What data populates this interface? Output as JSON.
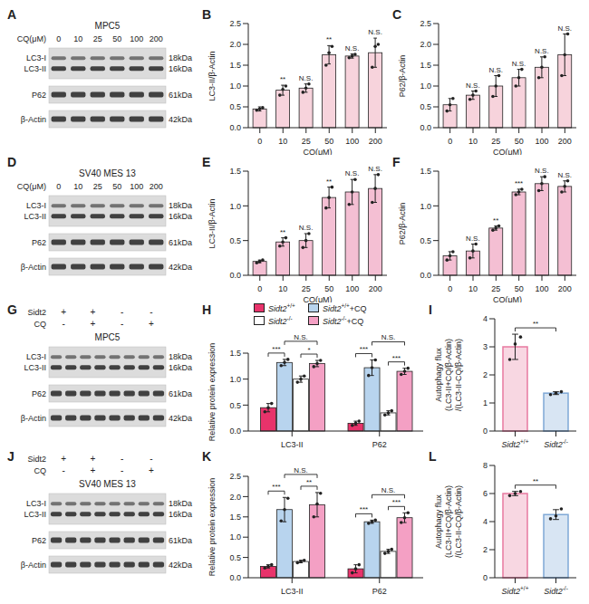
{
  "chart_data": [
    {
      "panel": "B",
      "type": "bar",
      "x_label": "CQ(μM)",
      "y_label": "LC3-II/β-Actin",
      "categories": [
        "0",
        "10",
        "25",
        "50",
        "100",
        "200"
      ],
      "values": [
        0.45,
        0.9,
        0.95,
        1.75,
        1.72,
        1.8
      ],
      "errors": [
        0.05,
        0.12,
        0.1,
        0.22,
        0.05,
        0.35
      ],
      "points": [
        [
          0.42,
          0.45,
          0.48
        ],
        [
          0.78,
          0.92,
          1.0
        ],
        [
          0.85,
          0.95,
          1.05
        ],
        [
          1.5,
          1.8,
          1.95
        ],
        [
          1.68,
          1.72,
          1.76
        ],
        [
          1.45,
          1.95,
          2.0
        ]
      ],
      "annotations": [
        null,
        "**",
        "N.S.",
        "**",
        "N.S.",
        "N.S."
      ],
      "color": "#f7d3dc",
      "ylim": [
        0,
        2.5
      ],
      "yticks": [
        {
          "value": 0,
          "label": "0.0"
        },
        {
          "value": 0.5,
          "label": "0.5"
        },
        {
          "value": 1,
          "label": "1.0"
        },
        {
          "value": 1.5,
          "label": "1.5"
        },
        {
          "value": 2,
          "label": "2.0"
        },
        {
          "value": 2.5,
          "label": "2.5"
        }
      ]
    },
    {
      "panel": "C",
      "type": "bar",
      "x_label": "CQ(μM)",
      "y_label": "P62/β-Actin",
      "categories": [
        "0",
        "10",
        "25",
        "50",
        "100",
        "200"
      ],
      "values": [
        0.55,
        0.78,
        1.0,
        1.2,
        1.45,
        1.75
      ],
      "errors": [
        0.15,
        0.1,
        0.25,
        0.2,
        0.25,
        0.5
      ],
      "points": [
        [
          0.4,
          0.55,
          0.7
        ],
        [
          0.68,
          0.78,
          0.88
        ],
        [
          0.75,
          1.0,
          1.25
        ],
        [
          1.0,
          1.2,
          1.4
        ],
        [
          1.2,
          1.45,
          1.7
        ],
        [
          1.25,
          1.75,
          2.25
        ]
      ],
      "annotations": [
        null,
        "N.S.",
        "N.S.",
        "N.S.",
        "N.S.",
        "N.S."
      ],
      "color": "#f7d3dc",
      "ylim": [
        0,
        2.5
      ],
      "yticks": [
        {
          "value": 0,
          "label": "0.0"
        },
        {
          "value": 0.5,
          "label": "0.5"
        },
        {
          "value": 1,
          "label": "1.0"
        },
        {
          "value": 1.5,
          "label": "1.5"
        },
        {
          "value": 2,
          "label": "2.0"
        },
        {
          "value": 2.5,
          "label": "2.5"
        }
      ]
    },
    {
      "panel": "E",
      "type": "bar",
      "x_label": "CQ(μM)",
      "y_label": "LC3-II/β-Actin",
      "categories": [
        "0",
        "10",
        "25",
        "50",
        "100",
        "200"
      ],
      "values": [
        0.2,
        0.48,
        0.5,
        1.12,
        1.2,
        1.25
      ],
      "errors": [
        0.02,
        0.06,
        0.1,
        0.15,
        0.18,
        0.2
      ],
      "points": [
        [
          0.18,
          0.2,
          0.22
        ],
        [
          0.42,
          0.48,
          0.54
        ],
        [
          0.4,
          0.5,
          0.6
        ],
        [
          0.97,
          1.12,
          1.27
        ],
        [
          1.02,
          1.2,
          1.38
        ],
        [
          1.05,
          1.25,
          1.45
        ]
      ],
      "annotations": [
        null,
        "**",
        "N.S.",
        "**",
        "N.S.",
        "N.S."
      ],
      "color": "#f4bfd3",
      "ylim": [
        0,
        1.5
      ],
      "yticks": [
        {
          "value": 0,
          "label": "0.0"
        },
        {
          "value": 0.5,
          "label": "0.5"
        },
        {
          "value": 1,
          "label": "1.0"
        },
        {
          "value": 1.5,
          "label": "1.5"
        }
      ]
    },
    {
      "panel": "F",
      "type": "bar",
      "x_label": "CQ(μM)",
      "y_label": "P62/β-Actin",
      "categories": [
        "0",
        "10",
        "25",
        "50",
        "100",
        "200"
      ],
      "values": [
        0.28,
        0.35,
        0.68,
        1.2,
        1.32,
        1.28
      ],
      "errors": [
        0.06,
        0.1,
        0.03,
        0.04,
        0.1,
        0.08
      ],
      "points": [
        [
          0.22,
          0.28,
          0.34
        ],
        [
          0.25,
          0.35,
          0.45
        ],
        [
          0.65,
          0.68,
          0.71
        ],
        [
          1.16,
          1.2,
          1.24
        ],
        [
          1.22,
          1.32,
          1.42
        ],
        [
          1.2,
          1.28,
          1.36
        ]
      ],
      "annotations": [
        null,
        "N.S.",
        "**",
        "***",
        "N.S.",
        "N.S."
      ],
      "color": "#f4bfd3",
      "ylim": [
        0,
        1.5
      ],
      "yticks": [
        {
          "value": 0,
          "label": "0.0"
        },
        {
          "value": 0.5,
          "label": "0.5"
        },
        {
          "value": 1,
          "label": "1.0"
        },
        {
          "value": 1.5,
          "label": "1.5"
        }
      ]
    },
    {
      "panel": "H",
      "type": "bar",
      "y_label": "Relative protein expression",
      "categories": [
        "LC3-II",
        "P62"
      ],
      "legend": "top",
      "series": [
        {
          "name": "Sidt2+/+",
          "color": "#e8336b",
          "values": [
            0.45,
            0.15
          ],
          "errors": [
            0.08,
            0.04
          ],
          "points": [
            [
              0.37,
              0.45,
              0.53
            ],
            [
              0.11,
              0.15,
              0.19
            ]
          ]
        },
        {
          "name": "Sidt2+/++CQ",
          "color": "#b8d4ee",
          "values": [
            1.32,
            1.22
          ],
          "errors": [
            0.06,
            0.15
          ],
          "points": [
            [
              1.26,
              1.32,
              1.38
            ],
            [
              1.07,
              1.22,
              1.37
            ]
          ]
        },
        {
          "name": "Sidt2-/-",
          "color": "#ffffff",
          "values": [
            1.0,
            0.35
          ],
          "errors": [
            0.06,
            0.04
          ],
          "points": [
            [
              0.94,
              1.0,
              1.06
            ],
            [
              0.31,
              0.35,
              0.39
            ]
          ]
        },
        {
          "name": "Sidt2-/-+CQ",
          "color": "#f4a0c4",
          "values": [
            1.3,
            1.15
          ],
          "errors": [
            0.06,
            0.06
          ],
          "points": [
            [
              1.24,
              1.3,
              1.36
            ],
            [
              1.09,
              1.15,
              1.21
            ]
          ]
        }
      ],
      "brackets": [
        {
          "category": "LC3-II",
          "between": [
            "Sidt2+/+",
            "Sidt2+/++CQ"
          ],
          "label": "***"
        },
        {
          "category": "LC3-II",
          "between": [
            "Sidt2+/++CQ",
            "Sidt2-/-+CQ"
          ],
          "label": "N.S."
        },
        {
          "category": "LC3-II",
          "between": [
            "Sidt2-/-",
            "Sidt2-/-+CQ"
          ],
          "label": "*"
        },
        {
          "category": "P62",
          "between": [
            "Sidt2+/+",
            "Sidt2+/++CQ"
          ],
          "label": "***"
        },
        {
          "category": "P62",
          "between": [
            "Sidt2+/++CQ",
            "Sidt2-/-+CQ"
          ],
          "label": "N.S."
        },
        {
          "category": "P62",
          "between": [
            "Sidt2-/-",
            "Sidt2-/-+CQ"
          ],
          "label": "***"
        }
      ],
      "ylim": [
        0,
        1.5
      ],
      "yticks": [
        {
          "value": 0,
          "label": "0.0"
        },
        {
          "value": 0.5,
          "label": "0.5"
        },
        {
          "value": 1,
          "label": "1.0"
        },
        {
          "value": 1.5,
          "label": "1.5"
        }
      ]
    },
    {
      "panel": "I",
      "type": "bar",
      "y_label": [
        "Autophagy flux",
        "(LC3-II+CQ/β-Actin)",
        "/(LC3-II-CQ/β-Actin)"
      ],
      "categories": [
        "Sidt2+/+",
        "Sidt2-/-"
      ],
      "values": [
        3.0,
        1.35
      ],
      "errors": [
        0.45,
        0.05
      ],
      "points": [
        [
          2.55,
          3.1,
          3.35
        ],
        [
          1.3,
          1.35,
          1.4
        ]
      ],
      "colors": [
        "#e77aa0",
        "#7fa8d6"
      ],
      "brackets": [
        {
          "between": [
            "Sidt2+/+",
            "Sidt2-/-"
          ],
          "label": "**"
        }
      ],
      "ylim": [
        0,
        4
      ],
      "yticks": [
        0,
        1,
        2,
        3,
        4
      ]
    },
    {
      "panel": "K",
      "type": "bar",
      "y_label": "Relative protein expression",
      "categories": [
        "LC3-II",
        "P62"
      ],
      "series": [
        {
          "name": "Sidt2+/+",
          "color": "#e8336b",
          "values": [
            0.28,
            0.22
          ],
          "errors": [
            0.04,
            0.1
          ],
          "points": [
            [
              0.24,
              0.28,
              0.32
            ],
            [
              0.12,
              0.22,
              0.32
            ]
          ]
        },
        {
          "name": "Sidt2+/++CQ",
          "color": "#b8d4ee",
          "values": [
            1.68,
            1.38
          ],
          "errors": [
            0.3,
            0.04
          ],
          "points": [
            [
              1.4,
              1.68,
              1.96
            ],
            [
              1.34,
              1.38,
              1.42
            ]
          ]
        },
        {
          "name": "Sidt2-/-",
          "color": "#ffffff",
          "values": [
            0.4,
            0.65
          ],
          "errors": [
            0.03,
            0.05
          ],
          "points": [
            [
              0.37,
              0.4,
              0.43
            ],
            [
              0.6,
              0.65,
              0.7
            ]
          ]
        },
        {
          "name": "Sidt2-/-+CQ",
          "color": "#f4a0c4",
          "values": [
            1.8,
            1.48
          ],
          "errors": [
            0.3,
            0.12
          ],
          "points": [
            [
              1.5,
              1.82,
              2.08
            ],
            [
              1.36,
              1.48,
              1.6
            ]
          ]
        }
      ],
      "brackets": [
        {
          "category": "LC3-II",
          "between": [
            "Sidt2+/+",
            "Sidt2+/++CQ"
          ],
          "label": "***"
        },
        {
          "category": "LC3-II",
          "between": [
            "Sidt2+/++CQ",
            "Sidt2-/-+CQ"
          ],
          "label": "N.S."
        },
        {
          "category": "LC3-II",
          "between": [
            "Sidt2-/-",
            "Sidt2-/-+CQ"
          ],
          "label": "**"
        },
        {
          "category": "P62",
          "between": [
            "Sidt2+/+",
            "Sidt2+/++CQ"
          ],
          "label": "***"
        },
        {
          "category": "P62",
          "between": [
            "Sidt2+/++CQ",
            "Sidt2-/-+CQ"
          ],
          "label": "N.S."
        },
        {
          "category": "P62",
          "between": [
            "Sidt2-/-",
            "Sidt2-/-+CQ"
          ],
          "label": "***"
        }
      ],
      "ylim": [
        0,
        2.5
      ],
      "yticks": [
        {
          "value": 0,
          "label": "0.0"
        },
        {
          "value": 0.5,
          "label": "0.5"
        },
        {
          "value": 1,
          "label": "1.0"
        },
        {
          "value": 1.5,
          "label": "1.5"
        },
        {
          "value": 2,
          "label": "2.0"
        },
        {
          "value": 2.5,
          "label": "2.5"
        }
      ]
    },
    {
      "panel": "L",
      "type": "bar",
      "y_label": [
        "Autophagy flux",
        "(LC3-II+CQ/β-Actin)",
        "/(LC3-II-CQ/β-Actin)"
      ],
      "categories": [
        "Sidt2+/+",
        "Sidt2-/-"
      ],
      "values": [
        6.0,
        4.5
      ],
      "errors": [
        0.15,
        0.35
      ],
      "points": [
        [
          5.85,
          6.0,
          6.15
        ],
        [
          4.2,
          4.4,
          4.9
        ]
      ],
      "colors": [
        "#e77aa0",
        "#7fa8d6"
      ],
      "brackets": [
        {
          "between": [
            "Sidt2+/+",
            "Sidt2-/-"
          ],
          "label": "**"
        }
      ],
      "ylim": [
        0,
        8
      ],
      "yticks": [
        0,
        2,
        4,
        6,
        8
      ]
    }
  ],
  "blots": [
    {
      "panel": "A",
      "title": "MPC5",
      "lane_label": "CQ(μM)",
      "lanes": [
        "0",
        "10",
        "25",
        "50",
        "100",
        "200"
      ],
      "rows": [
        {
          "labels": [
            "LC3-I",
            "LC3-II"
          ],
          "kda": [
            "18kDa",
            "16kDa"
          ]
        },
        {
          "labels": [
            "P62"
          ],
          "kda": [
            "61kDa"
          ]
        },
        {
          "labels": [
            "β-Actin"
          ],
          "kda": [
            "42kDa"
          ]
        }
      ]
    },
    {
      "panel": "D",
      "title": "SV40 MES 13",
      "lane_label": "CQ(μM)",
      "lanes": [
        "0",
        "10",
        "25",
        "50",
        "100",
        "200"
      ],
      "rows": [
        {
          "labels": [
            "LC3-I",
            "LC3-II"
          ],
          "kda": [
            "18kDa",
            "16kDa"
          ]
        },
        {
          "labels": [
            "P62"
          ],
          "kda": [
            "61kDa"
          ]
        },
        {
          "labels": [
            "β-Actin"
          ],
          "kda": [
            "42kDa"
          ]
        }
      ]
    },
    {
      "panel": "G",
      "title": "MPC5",
      "conditions": [
        {
          "label": "Sidt2",
          "values": [
            "+",
            "+",
            "-",
            "-"
          ]
        },
        {
          "label": "CQ",
          "values": [
            "-",
            "+",
            "-",
            "+"
          ]
        }
      ],
      "rows": [
        {
          "labels": [
            "LC3-I",
            "LC3-II"
          ],
          "kda": [
            "18kDa",
            "16kDa"
          ]
        },
        {
          "labels": [
            "P62"
          ],
          "kda": [
            "61kDa"
          ]
        },
        {
          "labels": [
            "β-Actin"
          ],
          "kda": [
            "42kDa"
          ]
        }
      ]
    },
    {
      "panel": "J",
      "title": "SV40 MES 13",
      "conditions": [
        {
          "label": "Sidt2",
          "values": [
            "+",
            "+",
            "-",
            "-"
          ]
        },
        {
          "label": "CQ",
          "values": [
            "-",
            "+",
            "-",
            "+"
          ]
        }
      ],
      "rows": [
        {
          "labels": [
            "LC3-I",
            "LC3-II"
          ],
          "kda": [
            "18kDa",
            "16kDa"
          ]
        },
        {
          "labels": [
            "P62"
          ],
          "kda": [
            "61kDa"
          ]
        },
        {
          "labels": [
            "β-Actin"
          ],
          "kda": [
            "42kDa"
          ]
        }
      ]
    }
  ]
}
